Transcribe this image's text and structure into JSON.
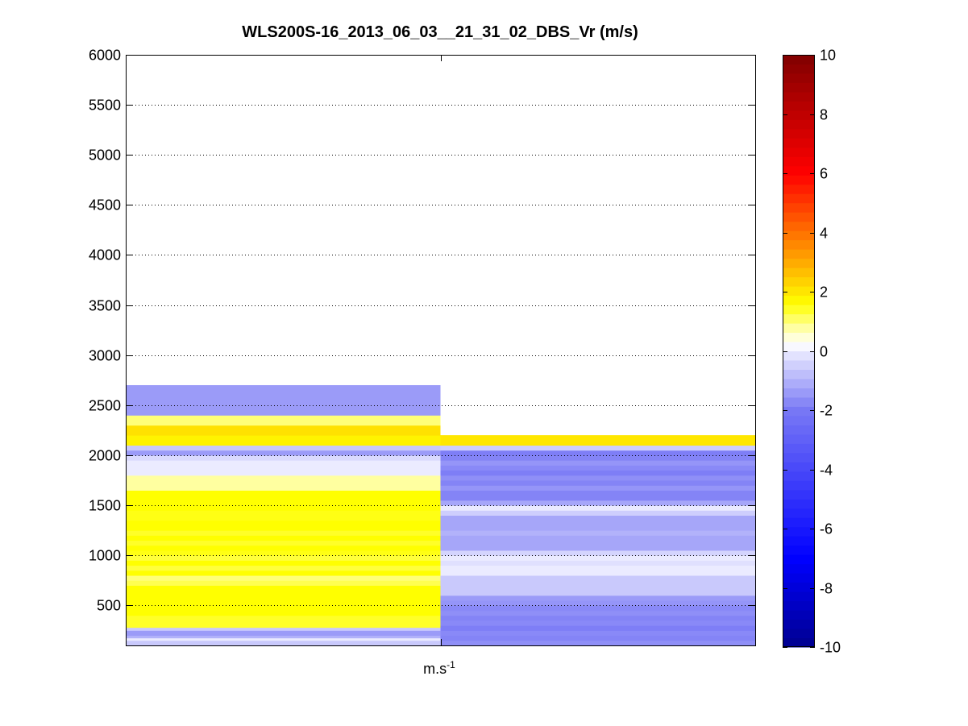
{
  "chart_data": {
    "type": "heatmap",
    "title": "WLS200S-16_2013_06_03__21_31_02_DBS_Vr (m/s)",
    "xlabel_base": "m.s",
    "xlabel_exp": "-1",
    "ylabel": "",
    "ylim": [
      100,
      6000
    ],
    "yticks": [
      500,
      1000,
      1500,
      2000,
      2500,
      3000,
      3500,
      4000,
      4500,
      5000,
      5500,
      6000
    ],
    "grid": true,
    "colorbar": {
      "range": [
        -10,
        10
      ],
      "ticks": [
        -10,
        -8,
        -6,
        -4,
        -2,
        0,
        2,
        4,
        6,
        8,
        10
      ],
      "colormap": "blue-white-yellow-red"
    },
    "columns": [
      {
        "x_range": [
          0.5,
          1.5
        ],
        "cells": [
          {
            "from": 100,
            "to": 150,
            "value": -0.6
          },
          {
            "from": 150,
            "to": 175,
            "value": 0.0
          },
          {
            "from": 175,
            "to": 200,
            "value": -1.0
          },
          {
            "from": 200,
            "to": 250,
            "value": -1.4
          },
          {
            "from": 250,
            "to": 280,
            "value": -0.6
          },
          {
            "from": 280,
            "to": 400,
            "value": 1.4
          },
          {
            "from": 400,
            "to": 700,
            "value": 1.6
          },
          {
            "from": 700,
            "to": 750,
            "value": 1.2
          },
          {
            "from": 750,
            "to": 800,
            "value": 1.0
          },
          {
            "from": 800,
            "to": 850,
            "value": 1.6
          },
          {
            "from": 850,
            "to": 900,
            "value": 1.3
          },
          {
            "from": 900,
            "to": 950,
            "value": 1.6
          },
          {
            "from": 950,
            "to": 1000,
            "value": 1.3
          },
          {
            "from": 1000,
            "to": 1050,
            "value": 1.5
          },
          {
            "from": 1050,
            "to": 1100,
            "value": 1.6
          },
          {
            "from": 1100,
            "to": 1150,
            "value": 1.4
          },
          {
            "from": 1150,
            "to": 1200,
            "value": 1.6
          },
          {
            "from": 1200,
            "to": 1250,
            "value": 1.4
          },
          {
            "from": 1250,
            "to": 1350,
            "value": 1.6
          },
          {
            "from": 1350,
            "to": 1450,
            "value": 1.5
          },
          {
            "from": 1450,
            "to": 1650,
            "value": 1.6
          },
          {
            "from": 1650,
            "to": 1800,
            "value": 0.8
          },
          {
            "from": 1800,
            "to": 1950,
            "value": 0.0
          },
          {
            "from": 1950,
            "to": 2000,
            "value": -0.3
          },
          {
            "from": 2000,
            "to": 2050,
            "value": -1.4
          },
          {
            "from": 2050,
            "to": 2100,
            "value": -0.6
          },
          {
            "from": 2100,
            "to": 2200,
            "value": 1.8
          },
          {
            "from": 2200,
            "to": 2300,
            "value": 2.1
          },
          {
            "from": 2300,
            "to": 2400,
            "value": 1.0
          },
          {
            "from": 2400,
            "to": 2700,
            "value": -1.4
          }
        ]
      },
      {
        "x_range": [
          1.5,
          2.5
        ],
        "cells": [
          {
            "from": 100,
            "to": 150,
            "value": -1.6
          },
          {
            "from": 150,
            "to": 200,
            "value": -1.8
          },
          {
            "from": 200,
            "to": 250,
            "value": -1.7
          },
          {
            "from": 250,
            "to": 300,
            "value": -1.9
          },
          {
            "from": 300,
            "to": 350,
            "value": -1.7
          },
          {
            "from": 350,
            "to": 400,
            "value": -1.8
          },
          {
            "from": 400,
            "to": 450,
            "value": -1.6
          },
          {
            "from": 450,
            "to": 500,
            "value": -1.7
          },
          {
            "from": 500,
            "to": 550,
            "value": -1.5
          },
          {
            "from": 550,
            "to": 600,
            "value": -1.4
          },
          {
            "from": 600,
            "to": 800,
            "value": -0.6
          },
          {
            "from": 800,
            "to": 900,
            "value": 0.0
          },
          {
            "from": 900,
            "to": 950,
            "value": -0.2
          },
          {
            "from": 950,
            "to": 1000,
            "value": 0.0
          },
          {
            "from": 1000,
            "to": 1050,
            "value": -0.4
          },
          {
            "from": 1050,
            "to": 1200,
            "value": -1.2
          },
          {
            "from": 1200,
            "to": 1250,
            "value": -1.0
          },
          {
            "from": 1250,
            "to": 1400,
            "value": -1.2
          },
          {
            "from": 1400,
            "to": 1450,
            "value": -0.5
          },
          {
            "from": 1450,
            "to": 1500,
            "value": 0.0
          },
          {
            "from": 1500,
            "to": 1550,
            "value": -1.2
          },
          {
            "from": 1550,
            "to": 1650,
            "value": -1.8
          },
          {
            "from": 1650,
            "to": 1700,
            "value": -1.5
          },
          {
            "from": 1700,
            "to": 1750,
            "value": -1.8
          },
          {
            "from": 1750,
            "to": 1800,
            "value": -1.6
          },
          {
            "from": 1800,
            "to": 1850,
            "value": -1.9
          },
          {
            "from": 1850,
            "to": 1900,
            "value": -1.7
          },
          {
            "from": 1900,
            "to": 1950,
            "value": -1.5
          },
          {
            "from": 1950,
            "to": 2000,
            "value": -1.8
          },
          {
            "from": 2000,
            "to": 2050,
            "value": -1.9
          },
          {
            "from": 2050,
            "to": 2100,
            "value": -0.5
          },
          {
            "from": 2100,
            "to": 2200,
            "value": 2.0
          }
        ]
      }
    ]
  }
}
